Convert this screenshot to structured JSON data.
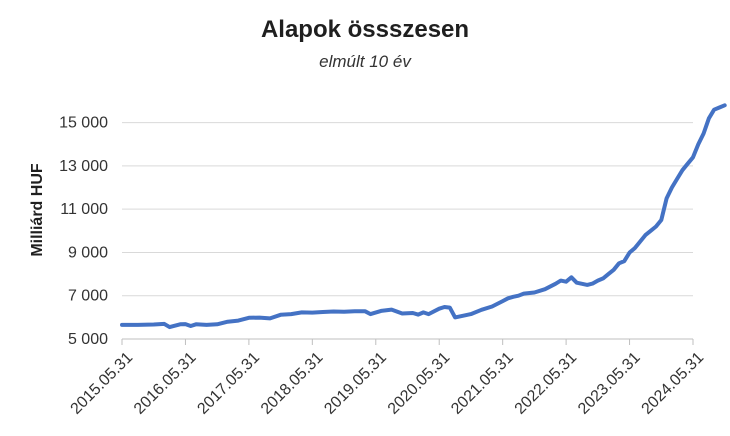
{
  "chart_data": {
    "type": "line",
    "title": "Alapok össszesen",
    "subtitle": "elmúlt 10 év",
    "ylabel": "Milliárd HUF",
    "xlabel": "",
    "ylim": [
      5000,
      16000
    ],
    "yticks": [
      "5 000",
      "7 000",
      "9 000",
      "11 000",
      "13 000",
      "15 000"
    ],
    "ytick_values": [
      5000,
      7000,
      9000,
      11000,
      13000,
      15000
    ],
    "grid": "horizontal",
    "legend": "none",
    "color": "#4472C4",
    "x_ticks": [
      "2015.05.31",
      "2016.05.31",
      "2017.05.31",
      "2018.05.31",
      "2019.05.31",
      "2020.05.31",
      "2021.05.31",
      "2022.05.31",
      "2023.05.31",
      "2024.05.31"
    ],
    "x_tick_months": [
      0,
      12,
      24,
      36,
      48,
      60,
      72,
      84,
      96,
      108
    ],
    "x_range_months": [
      0,
      108
    ],
    "series": [
      {
        "name": "",
        "values": [
          [
            0,
            5650
          ],
          [
            3,
            5650
          ],
          [
            6,
            5670
          ],
          [
            8,
            5700
          ],
          [
            9,
            5550
          ],
          [
            11,
            5680
          ],
          [
            12,
            5690
          ],
          [
            13,
            5600
          ],
          [
            14,
            5680
          ],
          [
            16,
            5650
          ],
          [
            18,
            5680
          ],
          [
            20,
            5800
          ],
          [
            22,
            5850
          ],
          [
            24,
            5980
          ],
          [
            26,
            5990
          ],
          [
            28,
            5950
          ],
          [
            30,
            6120
          ],
          [
            32,
            6150
          ],
          [
            34,
            6230
          ],
          [
            36,
            6220
          ],
          [
            38,
            6250
          ],
          [
            40,
            6270
          ],
          [
            42,
            6260
          ],
          [
            44,
            6280
          ],
          [
            46,
            6280
          ],
          [
            47,
            6150
          ],
          [
            49,
            6300
          ],
          [
            51,
            6360
          ],
          [
            53,
            6180
          ],
          [
            55,
            6200
          ],
          [
            56,
            6130
          ],
          [
            57,
            6230
          ],
          [
            58,
            6150
          ],
          [
            60,
            6400
          ],
          [
            61,
            6480
          ],
          [
            62,
            6450
          ],
          [
            63,
            6000
          ],
          [
            65,
            6100
          ],
          [
            66,
            6150
          ],
          [
            68,
            6350
          ],
          [
            70,
            6500
          ],
          [
            72,
            6750
          ],
          [
            73,
            6880
          ],
          [
            74,
            6950
          ],
          [
            75,
            7000
          ],
          [
            76,
            7100
          ],
          [
            78,
            7150
          ],
          [
            80,
            7300
          ],
          [
            82,
            7550
          ],
          [
            83,
            7700
          ],
          [
            84,
            7650
          ],
          [
            85,
            7850
          ],
          [
            86,
            7600
          ],
          [
            88,
            7500
          ],
          [
            89,
            7560
          ],
          [
            90,
            7700
          ],
          [
            91,
            7800
          ],
          [
            92,
            8000
          ],
          [
            93,
            8200
          ],
          [
            94,
            8500
          ],
          [
            95,
            8600
          ],
          [
            96,
            9000
          ],
          [
            97,
            9200
          ],
          [
            98,
            9500
          ],
          [
            99,
            9800
          ],
          [
            100,
            10000
          ],
          [
            101,
            10200
          ],
          [
            102,
            10500
          ],
          [
            103,
            11500
          ],
          [
            104,
            12000
          ],
          [
            105,
            12400
          ],
          [
            106,
            12800
          ],
          [
            107,
            13100
          ],
          [
            108,
            13400
          ],
          [
            109,
            14000
          ],
          [
            110,
            14500
          ],
          [
            111,
            15200
          ],
          [
            112,
            15600
          ],
          [
            113,
            15700
          ],
          [
            114,
            15800
          ]
        ]
      }
    ]
  }
}
